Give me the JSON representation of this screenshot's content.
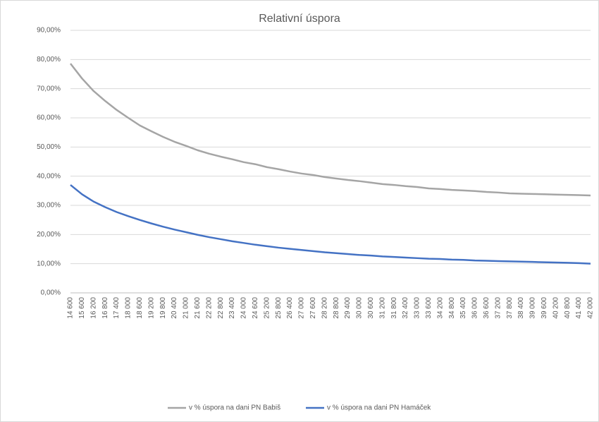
{
  "chart_data": {
    "type": "line",
    "title": "Relativní úspora",
    "categories": [
      "14 600",
      "15 600",
      "16 200",
      "16 800",
      "17 400",
      "18 000",
      "18 600",
      "19 200",
      "19 800",
      "20 400",
      "21 000",
      "21 600",
      "22 200",
      "22 800",
      "23 400",
      "24 000",
      "24 600",
      "25 200",
      "25 800",
      "26 400",
      "27 000",
      "27 600",
      "28 200",
      "28 800",
      "29 400",
      "30 000",
      "30 600",
      "31 200",
      "31 800",
      "32 400",
      "33 000",
      "33 600",
      "34 200",
      "34 800",
      "35 400",
      "36 000",
      "36 600",
      "37 200",
      "37 800",
      "38 400",
      "39 000",
      "39 600",
      "40 200",
      "40 800",
      "41 400",
      "42 000"
    ],
    "series": [
      {
        "name": "v % úspora na dani PN Babiš",
        "color": "#a5a5a5",
        "values": [
          78.6,
          73.5,
          69.2,
          65.8,
          62.7,
          60.0,
          57.4,
          55.4,
          53.5,
          51.8,
          50.4,
          48.9,
          47.7,
          46.7,
          45.8,
          44.8,
          44.1,
          43.1,
          42.4,
          41.6,
          40.9,
          40.4,
          39.7,
          39.2,
          38.7,
          38.3,
          37.8,
          37.3,
          37.0,
          36.6,
          36.3,
          35.8,
          35.6,
          35.3,
          35.1,
          34.9,
          34.6,
          34.4,
          34.1,
          34.0,
          33.9,
          33.8,
          33.7,
          33.6,
          33.5,
          33.4
        ]
      },
      {
        "name": "v % úspora na dani PN Hamáček",
        "color": "#4472c4",
        "values": [
          37,
          33.8,
          31.3,
          29.4,
          27.7,
          26.3,
          25.0,
          23.8,
          22.7,
          21.7,
          20.8,
          19.9,
          19.1,
          18.4,
          17.7,
          17.1,
          16.5,
          16.0,
          15.5,
          15.1,
          14.7,
          14.3,
          13.9,
          13.6,
          13.3,
          13.0,
          12.8,
          12.5,
          12.3,
          12.1,
          11.9,
          11.7,
          11.6,
          11.4,
          11.3,
          11.1,
          11.0,
          10.9,
          10.8,
          10.7,
          10.6,
          10.5,
          10.4,
          10.3,
          10.2,
          10.0
        ]
      }
    ],
    "ylim": [
      0,
      90
    ],
    "yticks": [
      {
        "value": 0,
        "label": "0,00%"
      },
      {
        "value": 10,
        "label": "10,00%"
      },
      {
        "value": 20,
        "label": "20,00%"
      },
      {
        "value": 30,
        "label": "30,00%"
      },
      {
        "value": 40,
        "label": "40,00%"
      },
      {
        "value": 50,
        "label": "50,00%"
      },
      {
        "value": 60,
        "label": "60,00%"
      },
      {
        "value": 70,
        "label": "70,00%"
      },
      {
        "value": 80,
        "label": "80,00%"
      },
      {
        "value": 90,
        "label": "90,00%"
      }
    ],
    "grid": true,
    "legend": "bottom"
  }
}
